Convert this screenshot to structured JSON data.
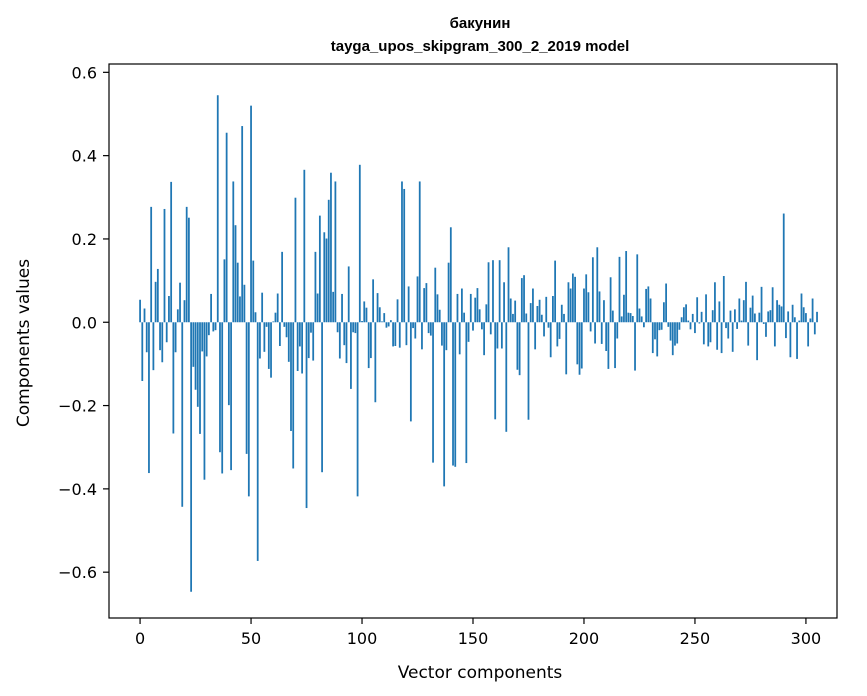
{
  "chart_data": {
    "type": "bar",
    "title": "бакунин",
    "subtitle": "tayga_upos_skipgram_300_2_2019 model",
    "xlabel": "Vector components",
    "ylabel": "Components values",
    "xlim": [
      -14,
      314
    ],
    "ylim": [
      -0.71,
      0.62
    ],
    "xticks": [
      0,
      50,
      100,
      150,
      200,
      250,
      300
    ],
    "xtick_labels": [
      "0",
      "50",
      "100",
      "150",
      "200",
      "250",
      "300"
    ],
    "yticks": [
      -0.6,
      -0.4,
      -0.2,
      0.0,
      0.2,
      0.4,
      0.6
    ],
    "ytick_labels": [
      "−0.6",
      "−0.4",
      "−0.2",
      "0.0",
      "0.2",
      "0.4",
      "0.6"
    ],
    "grid": false,
    "bar_color": "#1f77b4",
    "values": [
      0.054,
      -0.141,
      0.033,
      -0.072,
      -0.362,
      0.277,
      -0.115,
      0.097,
      0.128,
      -0.067,
      -0.096,
      0.272,
      -0.048,
      0.063,
      0.337,
      -0.267,
      -0.072,
      0.031,
      0.095,
      -0.443,
      0.053,
      0.277,
      0.251,
      -0.647,
      -0.107,
      -0.162,
      -0.203,
      -0.268,
      -0.07,
      -0.378,
      -0.082,
      -0.031,
      0.068,
      -0.022,
      -0.019,
      0.545,
      -0.312,
      -0.363,
      0.151,
      0.455,
      -0.199,
      -0.355,
      0.338,
      0.233,
      0.143,
      0.062,
      0.471,
      0.09,
      -0.316,
      -0.418,
      0.52,
      0.148,
      0.024,
      -0.573,
      -0.087,
      0.071,
      -0.071,
      -0.011,
      -0.112,
      -0.133,
      0.002,
      0.023,
      0.069,
      -0.057,
      0.169,
      -0.011,
      -0.036,
      -0.095,
      -0.261,
      -0.351,
      0.299,
      -0.117,
      -0.058,
      -0.123,
      0.366,
      -0.446,
      -0.086,
      -0.025,
      -0.092,
      0.169,
      0.069,
      0.256,
      -0.36,
      0.216,
      0.201,
      0.294,
      0.359,
      0.073,
      0.338,
      -0.024,
      -0.087,
      0.068,
      -0.055,
      -0.098,
      0.134,
      -0.16,
      -0.024,
      -0.026,
      -0.418,
      0.378,
      0.003,
      0.05,
      0.035,
      -0.11,
      -0.086,
      0.103,
      -0.192,
      0.07,
      0.036,
      0.002,
      0.022,
      -0.013,
      -0.01,
      0.005,
      -0.058,
      -0.057,
      0.055,
      -0.061,
      0.338,
      0.32,
      -0.055,
      0.086,
      -0.238,
      -0.014,
      -0.039,
      0.11,
      0.338,
      -0.065,
      0.082,
      0.094,
      -0.026,
      -0.032,
      -0.337,
      0.131,
      0.067,
      0.03,
      -0.056,
      -0.394,
      -0.067,
      0.143,
      0.228,
      -0.344,
      -0.347,
      0.068,
      -0.077,
      0.081,
      0.023,
      -0.338,
      -0.047,
      0.068,
      -0.02,
      0.059,
      0.082,
      0.031,
      -0.017,
      -0.079,
      0.043,
      0.144,
      -0.029,
      0.149,
      -0.233,
      -0.063,
      0.149,
      -0.063,
      0.096,
      -0.263,
      0.18,
      0.057,
      0.02,
      0.052,
      -0.114,
      -0.127,
      0.106,
      0.113,
      0.021,
      -0.234,
      0.046,
      0.081,
      -0.065,
      0.039,
      0.054,
      0.018,
      -0.034,
      0.061,
      -0.013,
      -0.084,
      0.063,
      0.148,
      -0.058,
      -0.04,
      0.042,
      0.02,
      -0.125,
      0.096,
      0.081,
      0.117,
      0.109,
      -0.101,
      -0.126,
      -0.111,
      0.081,
      0.115,
      0.072,
      -0.022,
      0.156,
      -0.051,
      0.18,
      0.074,
      -0.052,
      0.053,
      -0.069,
      -0.112,
      0.108,
      0.028,
      -0.11,
      -0.039,
      0.157,
      0.014,
      0.066,
      0.171,
      0.023,
      0.022,
      0.015,
      -0.116,
      0.163,
      0.033,
      0.014,
      -0.012,
      0.08,
      0.086,
      0.057,
      -0.074,
      -0.041,
      -0.082,
      -0.019,
      -0.018,
      0.048,
      0.093,
      -0.011,
      -0.044,
      -0.079,
      -0.056,
      -0.051,
      -0.018,
      0.012,
      0.036,
      0.043,
      0.004,
      -0.017,
      0.02,
      -0.026,
      0.06,
      -0.003,
      0.025,
      -0.053,
      0.067,
      -0.058,
      -0.048,
      0.029,
      0.096,
      -0.066,
      0.05,
      -0.074,
      0.111,
      -0.014,
      -0.039,
      0.028,
      -0.071,
      0.031,
      -0.016,
      0.057,
      0.004,
      0.053,
      0.097,
      -0.056,
      0.035,
      0.064,
      0.021,
      -0.091,
      0.023,
      0.085,
      -0.004,
      -0.035,
      0.026,
      0.029,
      0.084,
      -0.058,
      0.053,
      0.042,
      0.038,
      0.261,
      -0.038,
      0.026,
      -0.084,
      0.042,
      0.012,
      -0.088,
      0.004,
      0.069,
      0.036,
      0.022,
      -0.058,
      0.009,
      0.057,
      -0.029,
      0.025
    ]
  }
}
